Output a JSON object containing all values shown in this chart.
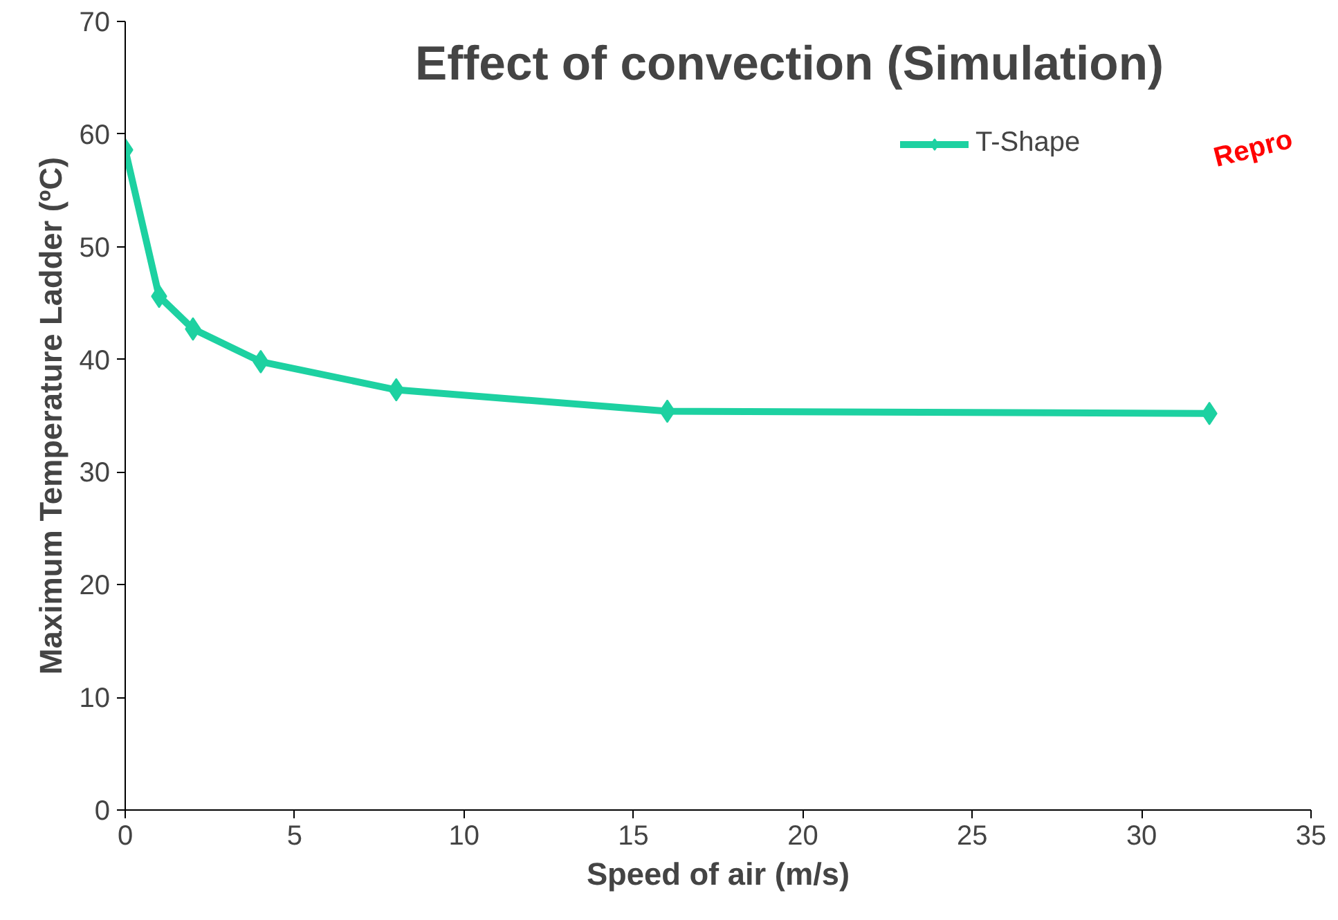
{
  "chart_data": {
    "type": "line",
    "title": "Effect of convection (Simulation)",
    "xlabel": "Speed of air (m/s)",
    "ylabel": "Maximum Temperature Ladder (ºC)",
    "x": [
      0,
      1,
      2,
      4,
      8,
      16,
      32
    ],
    "series": [
      {
        "name": "T-Shape",
        "color": "#1dd1a1",
        "values": [
          58.6,
          45.6,
          42.7,
          39.8,
          37.3,
          35.4,
          35.2
        ]
      }
    ],
    "xlim": [
      0,
      35
    ],
    "xticks": [
      0,
      5,
      10,
      15,
      20,
      25,
      30,
      35
    ],
    "ylim": [
      0,
      70
    ],
    "yticks": [
      0,
      10,
      20,
      30,
      40,
      50,
      60,
      70
    ],
    "annotations": [
      "Repro"
    ],
    "grid": false,
    "legend": "top right",
    "marker": "diamond",
    "line_style": "solid"
  }
}
